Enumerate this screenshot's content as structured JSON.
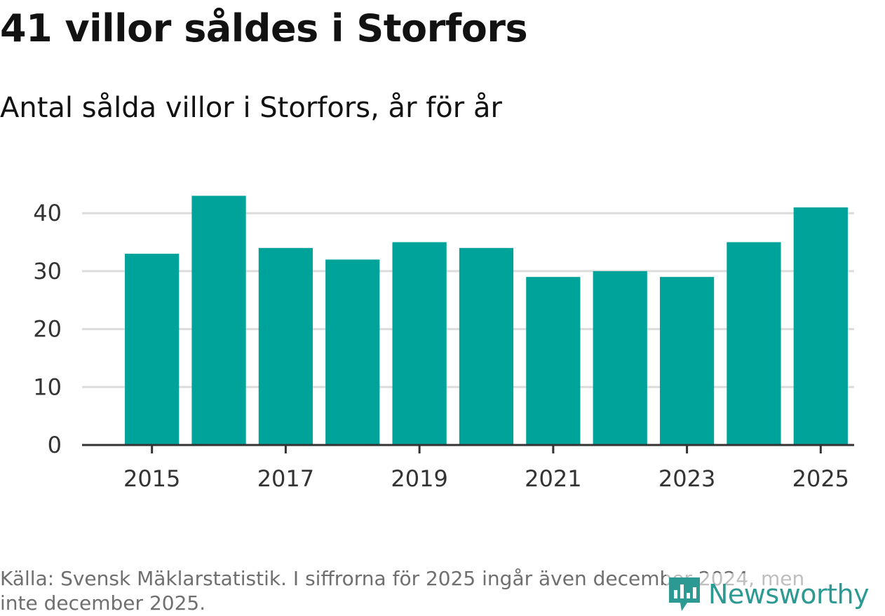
{
  "header": {
    "title": "41 villor såldes i Storfors",
    "subtitle": "Antal sålda villor i Storfors, år för år"
  },
  "footer": {
    "source": "Källa: Svensk Mäklarstatistik. I siffrorna för 2025 ingår även december 2024, men inte december 2025.",
    "brand": "Newsworthy"
  },
  "colors": {
    "bar": "#00a39a",
    "grid": "#dcdcdc",
    "axis": "#333333",
    "brand": "#2c9a92",
    "icon": "brand-chart-icon"
  },
  "chart_data": {
    "type": "bar",
    "title": "41 villor såldes i Storfors",
    "subtitle": "Antal sålda villor i Storfors, år för år",
    "xlabel": "",
    "ylabel": "",
    "categories": [
      "2015",
      "2016",
      "2017",
      "2018",
      "2019",
      "2020",
      "2021",
      "2022",
      "2023",
      "2024",
      "2025"
    ],
    "values": [
      33,
      43,
      34,
      32,
      35,
      34,
      29,
      30,
      29,
      35,
      41
    ],
    "x_tick_labels": [
      "2015",
      "2017",
      "2019",
      "2021",
      "2023",
      "2025"
    ],
    "y_ticks": [
      0,
      10,
      20,
      30,
      40
    ],
    "ylim": [
      0,
      43
    ],
    "grid": true,
    "legend": "none"
  }
}
